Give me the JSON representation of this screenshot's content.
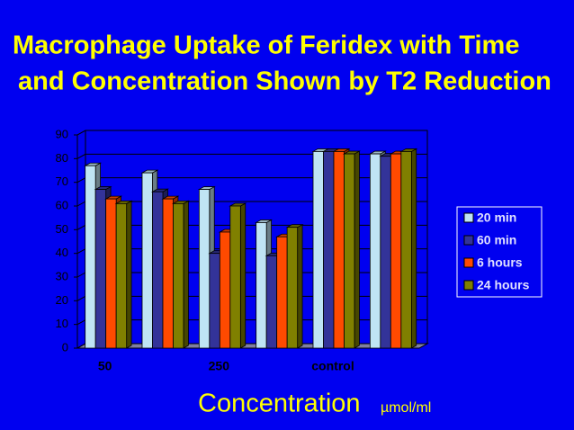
{
  "chart_data": {
    "type": "bar3d",
    "title": [
      "Macrophage Uptake of Feridex with Time",
      "and Concentration Shown by T2 Reduction"
    ],
    "xlabel": "Concentration",
    "xlabel_unit": "µmol/ml",
    "categories": [
      "50",
      null,
      "250",
      null,
      "control",
      null
    ],
    "series": [
      {
        "name": "20 min",
        "color": "#bfe4f4",
        "values": [
          77,
          74,
          67,
          53,
          83,
          82
        ]
      },
      {
        "name": "60 min",
        "color": "#333399",
        "values": [
          67,
          66,
          40,
          39,
          83,
          81
        ]
      },
      {
        "name": "6 hours",
        "color": "#ff4a00",
        "values": [
          63,
          63,
          49,
          47,
          83,
          82
        ]
      },
      {
        "name": "24 hours",
        "color": "#808000",
        "values": [
          61,
          61,
          60,
          51,
          82,
          83
        ]
      }
    ],
    "ylim": [
      0,
      90
    ],
    "yticks": [
      0,
      10,
      20,
      30,
      40,
      50,
      60,
      70,
      80,
      90
    ],
    "grid": true,
    "legend": "right"
  }
}
